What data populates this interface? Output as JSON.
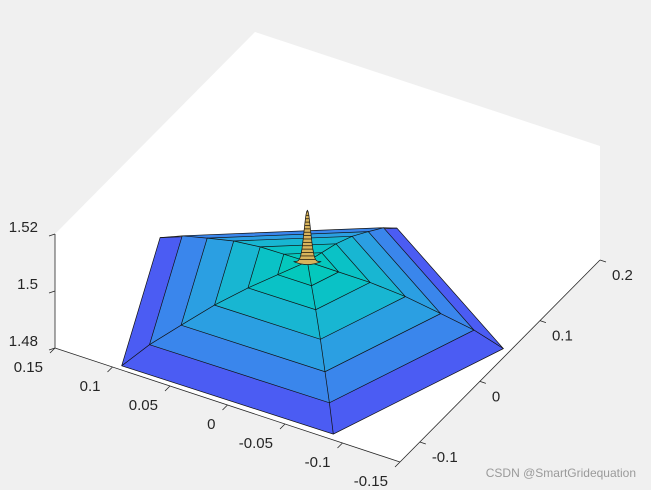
{
  "chart_data": {
    "type": "surface3d",
    "xlim": [
      -0.15,
      0.15
    ],
    "xticks": [
      0.15,
      0.1,
      0.05,
      0,
      -0.05,
      -0.1,
      -0.15
    ],
    "ylim": [
      -0.133,
      0.2
    ],
    "yticks": [
      -0.1,
      0,
      0.1,
      0.2
    ],
    "zlim": [
      1.48,
      1.52
    ],
    "zticks": [
      1.48,
      1.5,
      1.52
    ],
    "surface": {
      "center_x": 0,
      "center_y": 0,
      "boundary_x": [
        0.138,
        -0.011,
        -0.159,
        -0.103,
        0.08
      ],
      "boundary_y": [
        0.019,
        0.128,
        0.022,
        -0.154,
        -0.156
      ],
      "levels": [
        {
          "scale": 1,
          "z": 1.488,
          "color": "#4b5cf3"
        },
        {
          "scale": 0.85,
          "z": 1.492,
          "color": "#3a86ec"
        },
        {
          "scale": 0.68,
          "z": 1.495,
          "color": "#2b9fe2"
        },
        {
          "scale": 0.5,
          "z": 1.498,
          "color": "#18b6d2"
        },
        {
          "scale": 0.32,
          "z": 1.5,
          "color": "#0ac2c6"
        },
        {
          "scale": 0.16,
          "z": 1.501,
          "color": "#04c8bd"
        }
      ],
      "peak": {
        "base_z": 1.502,
        "z": 1.52,
        "width": 0.012,
        "color": "#d8b45c"
      }
    },
    "watermark": "CSDN @SmartGridequation"
  }
}
